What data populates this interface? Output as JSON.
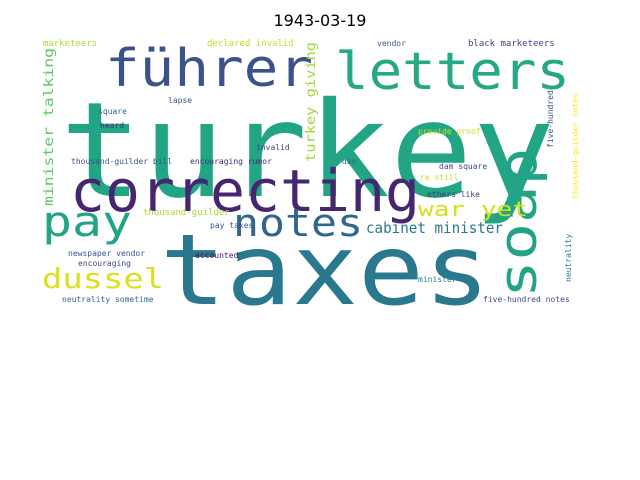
{
  "title": "1943-03-19",
  "words": [
    {
      "text": "turkey",
      "color": "#21a585"
    },
    {
      "text": "taxes",
      "color": "#2a788e"
    },
    {
      "text": "correcting",
      "color": "#46266f"
    },
    {
      "text": "letters",
      "color": "#25a884"
    },
    {
      "text": "führer",
      "color": "#3b528b"
    },
    {
      "text": "soap",
      "color": "#22a286"
    },
    {
      "text": "notes",
      "color": "#31668e"
    },
    {
      "text": "pay",
      "color": "#22a386"
    },
    {
      "text": "dussel",
      "color": "#dbe11e"
    },
    {
      "text": "war yet",
      "color": "#d2e21b"
    },
    {
      "text": "cabinet minister",
      "color": "#2a788e"
    },
    {
      "text": "minister talking",
      "color": "#5ec962"
    },
    {
      "text": "turkey giving",
      "color": "#a0da39"
    },
    {
      "text": "marketeers",
      "color": "#a8db34"
    },
    {
      "text": "declared invalid",
      "color": "#c3df22"
    },
    {
      "text": "vendor",
      "color": "#365c8d"
    },
    {
      "text": "black marketeers",
      "color": "#424186"
    },
    {
      "text": "lapse",
      "color": "#3b528b"
    },
    {
      "text": "square",
      "color": "#31668e"
    },
    {
      "text": "heard",
      "color": "#46326e"
    },
    {
      "text": "invalid",
      "color": "#433e85"
    },
    {
      "text": "thousand-guilder bill",
      "color": "#3b528b"
    },
    {
      "text": "encouraging rumor",
      "color": "#482878"
    },
    {
      "text": "dam",
      "color": "#2c728e"
    },
    {
      "text": "dam square",
      "color": "#3e4a89"
    },
    {
      "text": "provide proof",
      "color": "#c8e020"
    },
    {
      "text": "five-hundred",
      "color": "#3e4c8a"
    },
    {
      "text": "thousand-guilder notes",
      "color": "#fde725"
    },
    {
      "text": "re still",
      "color": "#c2df23"
    },
    {
      "text": "others like",
      "color": "#46327e"
    },
    {
      "text": "thousand-guilder",
      "color": "#a5db36"
    },
    {
      "text": "pay taxes",
      "color": "#3b528b"
    },
    {
      "text": "newspaper vendor",
      "color": "#3b528b"
    },
    {
      "text": "encouraging",
      "color": "#3e4989"
    },
    {
      "text": "accounted",
      "color": "#471063"
    },
    {
      "text": "minister",
      "color": "#26818e"
    },
    {
      "text": "neutrality",
      "color": "#2a788e"
    },
    {
      "text": "neutrality sometime",
      "color": "#31688e"
    },
    {
      "text": "five-hundred notes",
      "color": "#3e4a89"
    }
  ]
}
